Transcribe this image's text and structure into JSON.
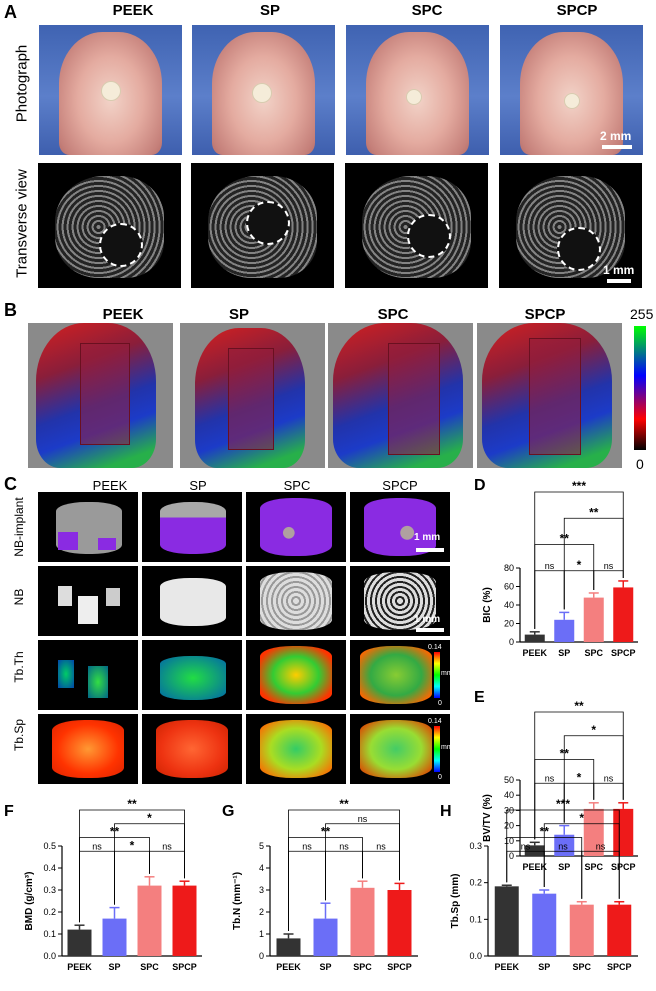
{
  "panelA": {
    "label": "A",
    "columns": [
      "PEEK",
      "SP",
      "SPC",
      "SPCP"
    ],
    "rows": [
      "Photograph",
      "Transverse view"
    ],
    "scale_photo": "2 mm",
    "scale_ct": "1 mm"
  },
  "panelB": {
    "label": "B",
    "columns": [
      "PEEK",
      "SP",
      "SPC",
      "SPCP"
    ],
    "colorbar_max": "255",
    "colorbar_min": "0"
  },
  "panelC": {
    "label": "C",
    "columns": [
      "PEEK",
      "SP",
      "SPC",
      "SPCP"
    ],
    "rows": [
      "NB-implant",
      "NB",
      "Tb.Th",
      "Tb.Sp"
    ],
    "scale": "1 mm",
    "colorbar_top": "0.14",
    "colorbar_unit": "mm",
    "colorbar_bottom": "0"
  },
  "colors": {
    "PEEK": "#333333",
    "SP": "#6b6ef7",
    "SPC": "#f47f7f",
    "SPCP": "#ee1a1a"
  },
  "chart_data": [
    {
      "panel": "D",
      "type": "bar",
      "ylabel": "BIC (%)",
      "categories": [
        "PEEK",
        "SP",
        "SPC",
        "SPCP"
      ],
      "values": [
        8,
        24,
        48,
        59
      ],
      "errors": [
        3,
        8,
        5,
        7
      ],
      "ylim": [
        0,
        80
      ],
      "yticks": [
        "0",
        "20",
        "40",
        "60",
        "80"
      ],
      "sig": [
        {
          "a": 0,
          "b": 3,
          "label": "***"
        },
        {
          "a": 1,
          "b": 3,
          "label": "**"
        },
        {
          "a": 0,
          "b": 2,
          "label": "**"
        },
        {
          "a": 0,
          "b": 1,
          "label": "ns"
        },
        {
          "a": 1,
          "b": 2,
          "label": "*"
        },
        {
          "a": 2,
          "b": 3,
          "label": "ns"
        }
      ]
    },
    {
      "panel": "E",
      "type": "bar",
      "ylabel": "BV/TV (%)",
      "categories": [
        "PEEK",
        "SP",
        "SPC",
        "SPCP"
      ],
      "values": [
        7,
        14,
        31,
        31
      ],
      "errors": [
        2,
        6,
        4,
        4
      ],
      "ylim": [
        0,
        50
      ],
      "yticks": [
        "0",
        "10",
        "20",
        "30",
        "40",
        "50"
      ],
      "sig": [
        {
          "a": 0,
          "b": 3,
          "label": "**"
        },
        {
          "a": 1,
          "b": 3,
          "label": "*"
        },
        {
          "a": 0,
          "b": 2,
          "label": "**"
        },
        {
          "a": 0,
          "b": 1,
          "label": "ns"
        },
        {
          "a": 1,
          "b": 2,
          "label": "*"
        },
        {
          "a": 2,
          "b": 3,
          "label": "ns"
        }
      ]
    },
    {
      "panel": "F",
      "type": "bar",
      "ylabel": "BMD (g/cm³)",
      "categories": [
        "PEEK",
        "SP",
        "SPC",
        "SPCP"
      ],
      "values": [
        0.12,
        0.17,
        0.32,
        0.32
      ],
      "errors": [
        0.02,
        0.05,
        0.04,
        0.02
      ],
      "ylim": [
        0,
        0.5
      ],
      "yticks": [
        "0.0",
        "0.1",
        "0.2",
        "0.3",
        "0.4",
        "0.5"
      ],
      "sig": [
        {
          "a": 0,
          "b": 3,
          "label": "**"
        },
        {
          "a": 1,
          "b": 3,
          "label": "*"
        },
        {
          "a": 0,
          "b": 2,
          "label": "**"
        },
        {
          "a": 0,
          "b": 1,
          "label": "ns"
        },
        {
          "a": 1,
          "b": 2,
          "label": "*"
        },
        {
          "a": 2,
          "b": 3,
          "label": "ns"
        }
      ]
    },
    {
      "panel": "G",
      "type": "bar",
      "ylabel": "Tb.N (mm⁻¹)",
      "categories": [
        "PEEK",
        "SP",
        "SPC",
        "SPCP"
      ],
      "values": [
        0.8,
        1.7,
        3.1,
        3.0
      ],
      "errors": [
        0.2,
        0.7,
        0.3,
        0.3
      ],
      "ylim": [
        0,
        5
      ],
      "yticks": [
        "0",
        "1",
        "2",
        "3",
        "4",
        "5"
      ],
      "sig": [
        {
          "a": 0,
          "b": 3,
          "label": "**"
        },
        {
          "a": 1,
          "b": 3,
          "label": "ns"
        },
        {
          "a": 0,
          "b": 2,
          "label": "**"
        },
        {
          "a": 0,
          "b": 1,
          "label": "ns"
        },
        {
          "a": 1,
          "b": 2,
          "label": "ns"
        },
        {
          "a": 2,
          "b": 3,
          "label": "ns"
        }
      ]
    },
    {
      "panel": "H",
      "type": "bar",
      "ylabel": "Tb.Sp (mm)",
      "categories": [
        "PEEK",
        "SP",
        "SPC",
        "SPCP"
      ],
      "values": [
        0.19,
        0.17,
        0.14,
        0.14
      ],
      "errors": [
        0.003,
        0.01,
        0.008,
        0.008
      ],
      "ylim": [
        0,
        0.3
      ],
      "yticks": [
        "0.0",
        "0.1",
        "0.2",
        "0.3"
      ],
      "sig": [
        {
          "a": 0,
          "b": 3,
          "label": "***"
        },
        {
          "a": 1,
          "b": 3,
          "label": "*"
        },
        {
          "a": 0,
          "b": 2,
          "label": "**"
        },
        {
          "a": 0,
          "b": 1,
          "label": "ns"
        },
        {
          "a": 1,
          "b": 2,
          "label": "ns"
        },
        {
          "a": 2,
          "b": 3,
          "label": "ns"
        }
      ]
    }
  ]
}
